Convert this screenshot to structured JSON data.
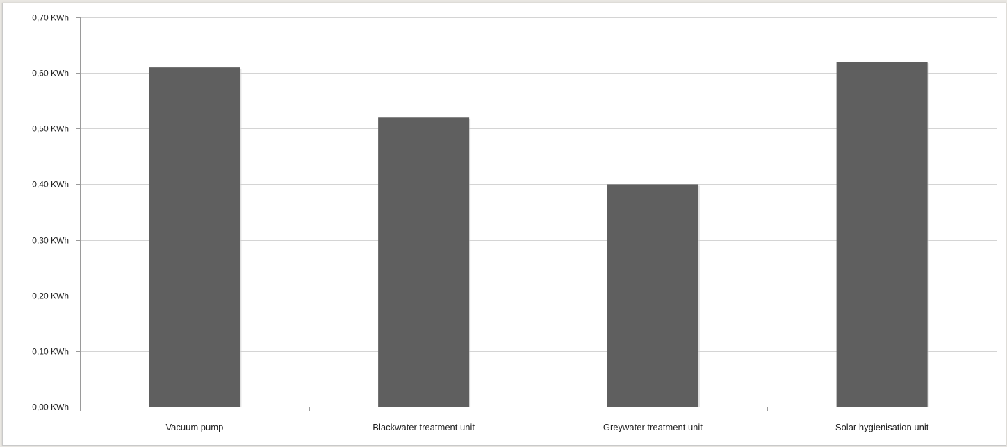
{
  "chart_data": {
    "type": "bar",
    "title": "",
    "xlabel": "",
    "ylabel": "",
    "categories": [
      "Vacuum pump",
      "Blackwater treatment unit",
      "Greywater treatment  unit",
      "Solar hygienisation unit"
    ],
    "values": [
      0.61,
      0.52,
      0.4,
      0.62
    ],
    "ylim": [
      0,
      0.7
    ],
    "yticks": [
      0.0,
      0.1,
      0.2,
      0.3,
      0.4,
      0.5,
      0.6,
      0.7
    ],
    "ytick_labels": [
      "0,00 KWh",
      "0,10 KWh",
      "0,20 KWh",
      "0,30 KWh",
      "0,40 KWh",
      "0,50 KWh",
      "0,60 KWh",
      "0,70 KWh"
    ],
    "grid": true,
    "legend": "none",
    "colors": {
      "bar": "#5f5f5f",
      "grid": "#d4d4d4",
      "axis": "#9a9a9a"
    }
  }
}
